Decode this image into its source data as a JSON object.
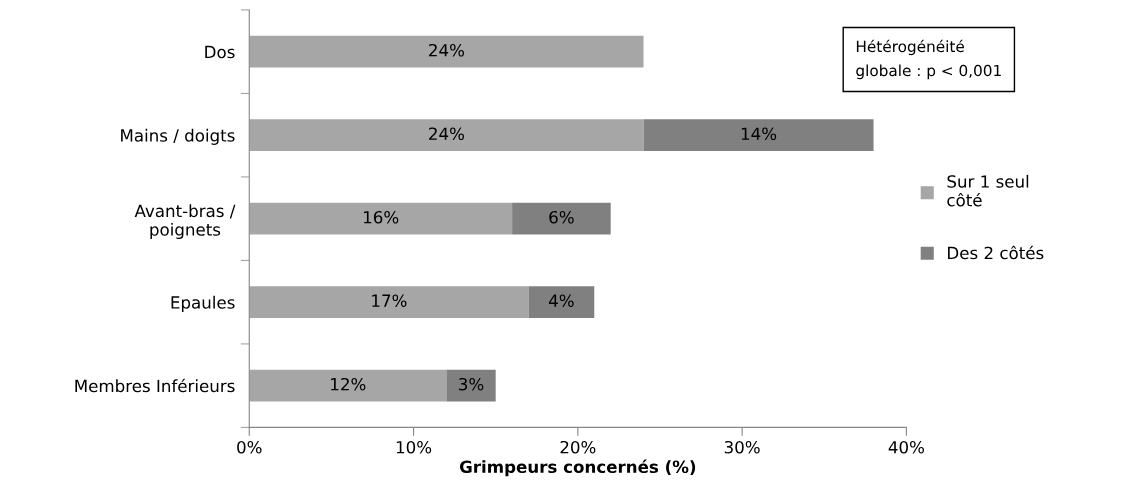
{
  "chart_data": {
    "type": "bar",
    "orientation": "horizontal",
    "stacked": true,
    "categories": [
      "Dos",
      "Mains / doigts",
      "Avant-bras /\npoignets",
      "Epaules",
      "Membres Inférieurs"
    ],
    "series": [
      {
        "name": "Sur 1 seul\ncôté",
        "color": "#a6a6a6",
        "values": [
          24,
          24,
          16,
          17,
          12
        ],
        "value_labels": [
          "24%",
          "24%",
          "16%",
          "17%",
          "12%"
        ]
      },
      {
        "name": "Des 2 côtés",
        "color": "#808080",
        "values": [
          null,
          14,
          6,
          4,
          3
        ],
        "value_labels": [
          null,
          "14%",
          "6%",
          "4%",
          "3%"
        ]
      }
    ],
    "xlim": [
      0,
      40
    ],
    "xticks": [
      {
        "value": 0,
        "label": "0%"
      },
      {
        "value": 10,
        "label": "10%"
      },
      {
        "value": 20,
        "label": "20%"
      },
      {
        "value": 30,
        "label": "30%"
      },
      {
        "value": 40,
        "label": "40%"
      }
    ],
    "xlabel": "Grimpeurs concernés (%)",
    "annotations": [
      "Hétérogénéité\nglobale : p < 0,001"
    ],
    "legend": "right",
    "grid": false
  }
}
